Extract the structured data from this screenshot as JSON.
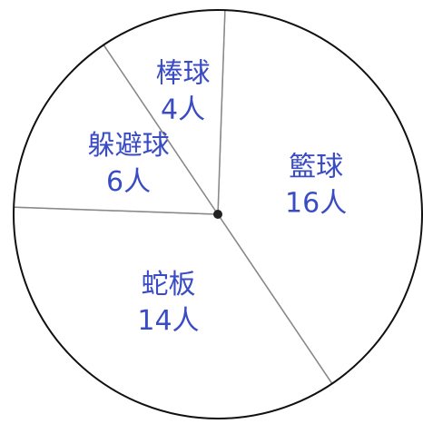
{
  "chart_data": {
    "type": "pie",
    "categories": [
      "籃球",
      "蛇板",
      "躲避球",
      "棒球"
    ],
    "values": [
      16,
      14,
      6,
      4
    ],
    "value_labels": [
      "16人",
      "14人",
      "6人",
      "4人"
    ],
    "color": "#ffffff",
    "label_color": "#3a4cc4"
  }
}
